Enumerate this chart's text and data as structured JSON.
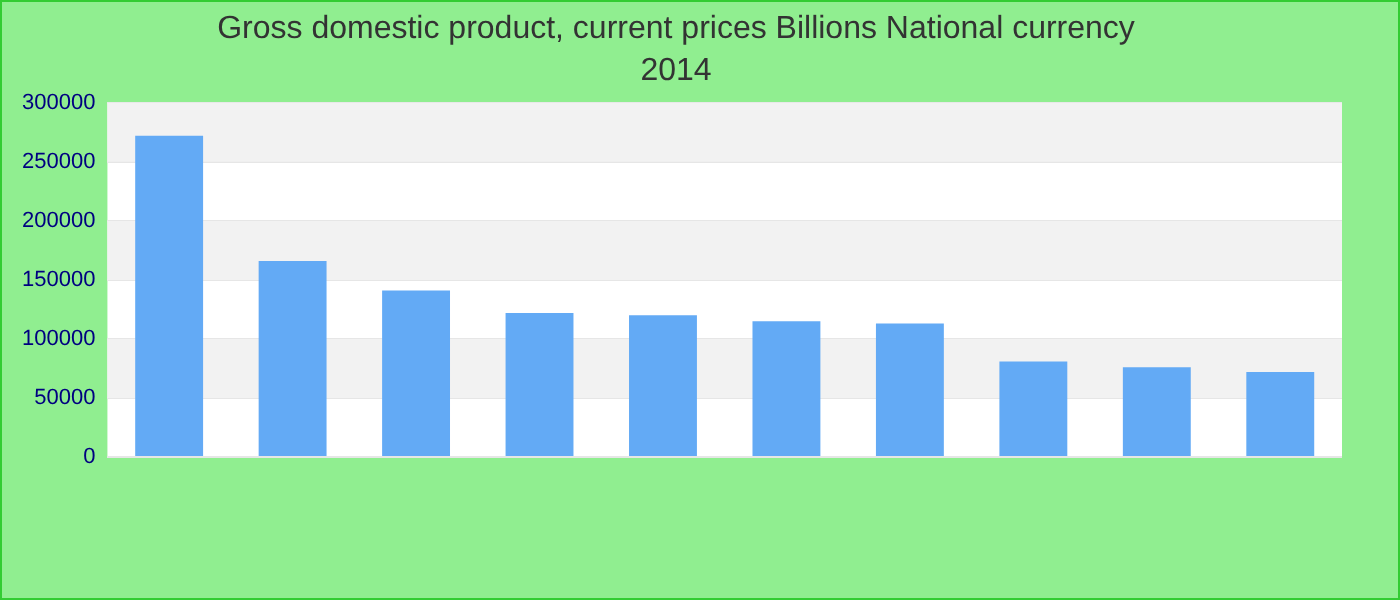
{
  "chart_data": {
    "type": "bar",
    "title": "Gross domestic product, current prices Billions National currency",
    "subtitle": "2014",
    "categories": [
      null,
      null,
      null,
      null,
      null,
      null,
      null,
      null,
      null,
      null
    ],
    "values": [
      272000,
      166000,
      141000,
      122000,
      120000,
      115000,
      113000,
      81000,
      76000,
      72000
    ],
    "color": "#63aaf5",
    "ylim": [
      0,
      300000
    ],
    "yticks": [
      0,
      50000,
      100000,
      150000,
      200000,
      250000,
      300000
    ],
    "grid": "y"
  }
}
